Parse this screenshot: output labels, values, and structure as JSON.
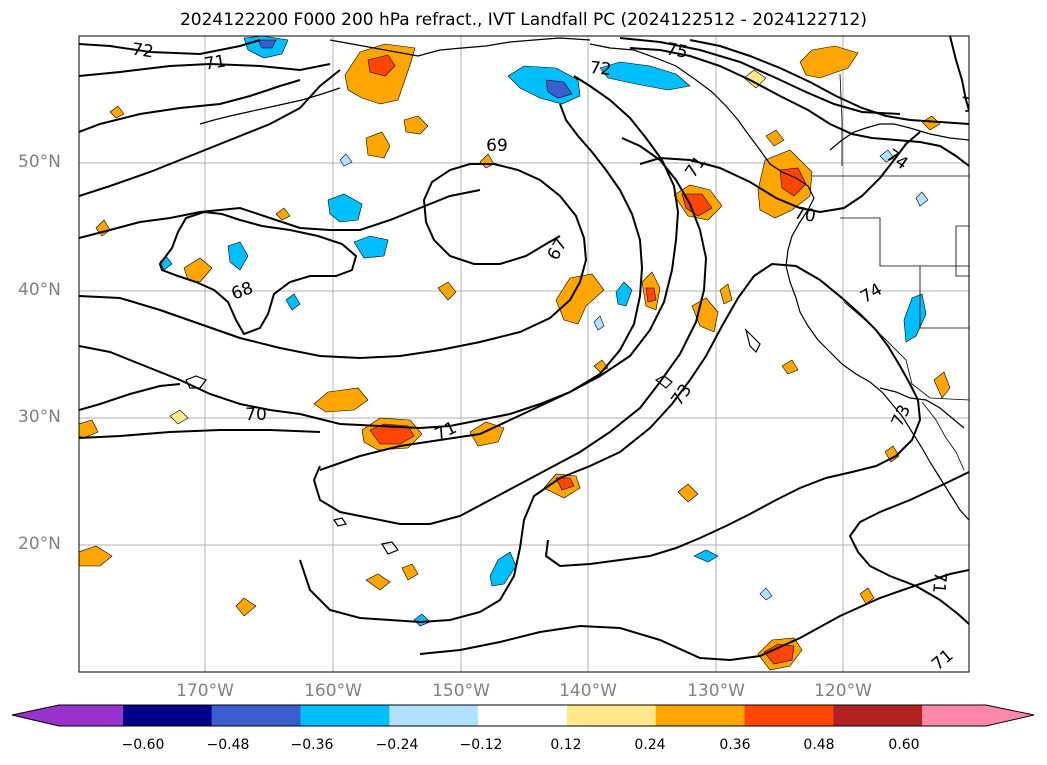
{
  "title": "2024122200 F000 200 hPa refract., IVT Landfall PC (2024122512 - 2024122712)",
  "lat_labels": [
    "50°N",
    "40°N",
    "30°N",
    "20°N"
  ],
  "lon_labels": [
    "170°W",
    "160°W",
    "150°W",
    "140°W",
    "130°W",
    "120°W"
  ],
  "contour_labels": [
    "72",
    "71",
    "75",
    "72",
    "74",
    "69",
    "71",
    "74",
    "70",
    "67",
    "68",
    "74",
    "73",
    "70",
    "71",
    "73",
    "71",
    "71"
  ],
  "colorbar": {
    "ticks": [
      "−0.60",
      "−0.48",
      "−0.36",
      "−0.24",
      "−0.12",
      "0.12",
      "0.24",
      "0.36",
      "0.48",
      "0.60"
    ],
    "colors": [
      "#9932cc",
      "#00008b",
      "#3a5fcd",
      "#00bfff",
      "#b0e2ff",
      "#ffffff",
      "#ffe78a",
      "#ffa500",
      "#ff4500",
      "#b22222",
      "#ff88aa"
    ]
  },
  "colors": {
    "grid": "#b0b0b0",
    "contour": "#000000",
    "coast": "#000000"
  }
}
